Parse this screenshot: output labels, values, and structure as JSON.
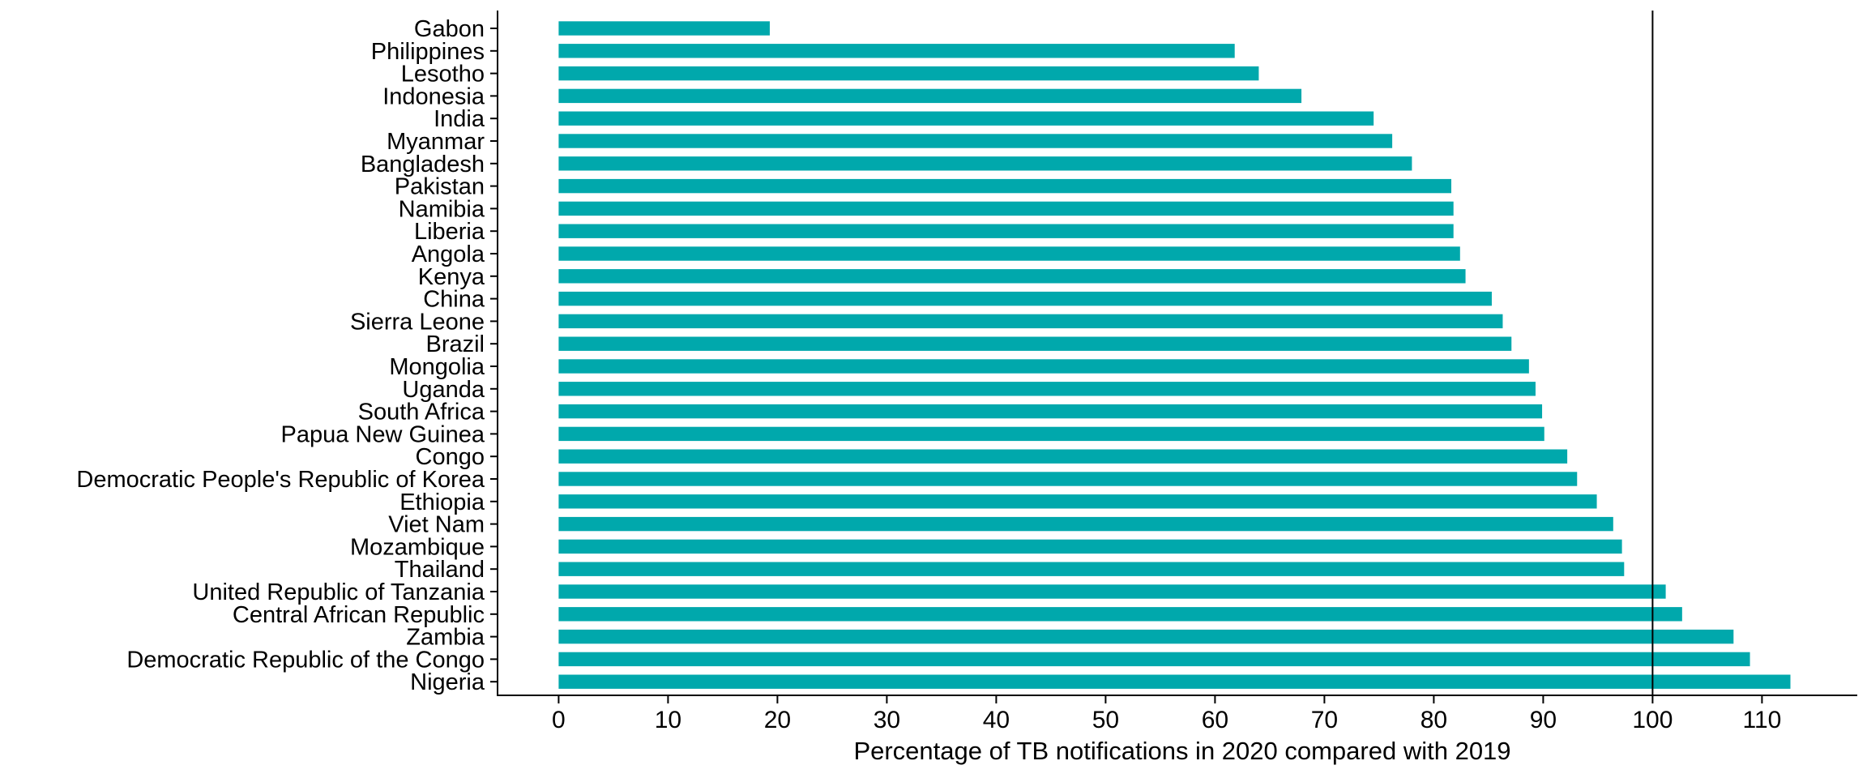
{
  "chart_data": {
    "type": "bar",
    "orientation": "horizontal",
    "title": "",
    "xlabel": "Percentage of TB notifications in 2020 compared with 2019",
    "ylabel": "",
    "categories": [
      "Gabon",
      "Philippines",
      "Lesotho",
      "Indonesia",
      "India",
      "Myanmar",
      "Bangladesh",
      "Pakistan",
      "Namibia",
      "Liberia",
      "Angola",
      "Kenya",
      "China",
      "Sierra Leone",
      "Brazil",
      "Mongolia",
      "Uganda",
      "South Africa",
      "Papua New Guinea",
      "Congo",
      "Democratic People's Republic of Korea",
      "Ethiopia",
      "Viet Nam",
      "Mozambique",
      "Thailand",
      "United Republic of Tanzania",
      "Central African Republic",
      "Zambia",
      "Democratic Republic of the Congo",
      "Nigeria"
    ],
    "values": [
      19.3,
      61.8,
      64.0,
      67.9,
      74.5,
      76.2,
      78.0,
      81.6,
      81.8,
      81.8,
      82.4,
      82.9,
      85.3,
      86.3,
      87.1,
      88.7,
      89.3,
      89.9,
      90.1,
      92.2,
      93.1,
      94.9,
      96.4,
      97.2,
      97.4,
      101.2,
      102.7,
      107.4,
      108.9,
      112.6
    ],
    "x_ticks": [
      0,
      10,
      20,
      30,
      40,
      50,
      60,
      70,
      80,
      90,
      100,
      110
    ],
    "xlim": [
      0,
      119
    ],
    "reference_line_x": 100,
    "grid": false,
    "legend": false,
    "bar_color": "#00A8AC",
    "axis_color": "#000000",
    "text_color": "#000000",
    "background_color": "#FFFFFF"
  }
}
